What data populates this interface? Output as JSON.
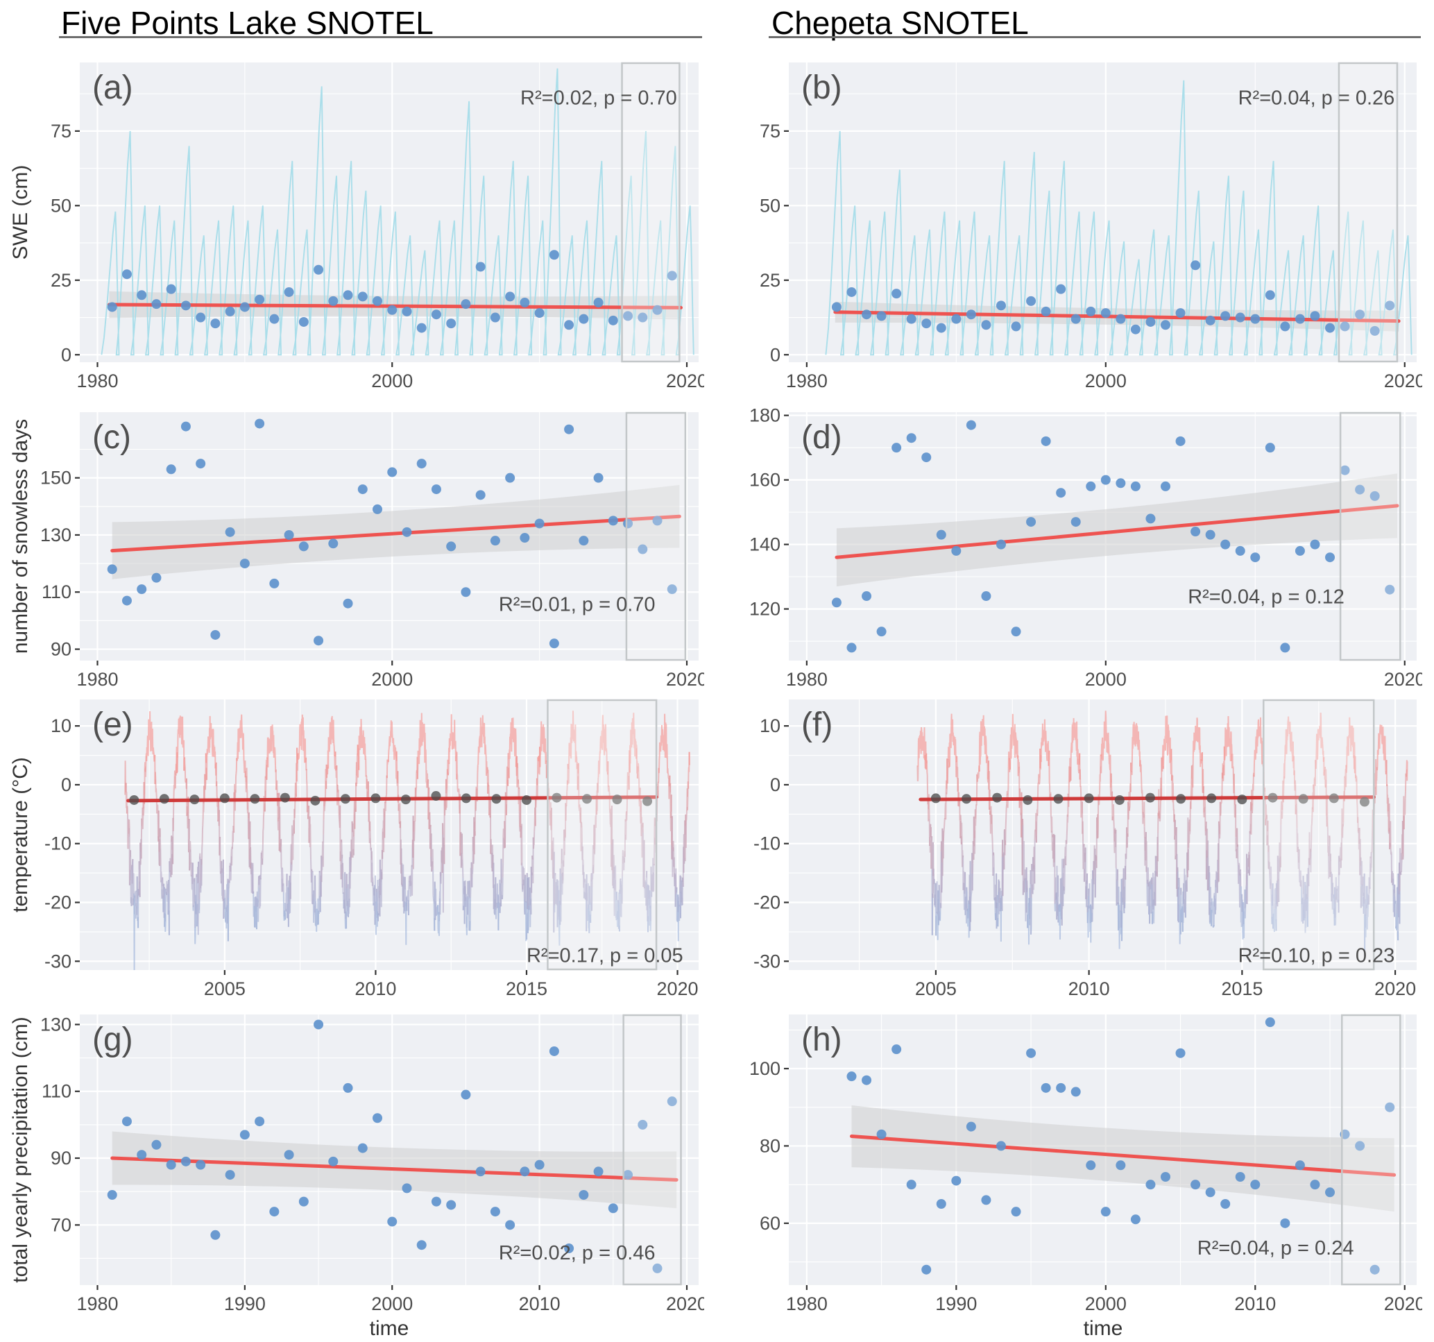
{
  "columns": [
    {
      "title": "Five Points Lake SNOTEL"
    },
    {
      "title": "Chepeta SNOTEL"
    }
  ],
  "axis_titles": {
    "row1": "SWE (cm)",
    "row2": "number of snowless days",
    "row3": "temperature (°C)",
    "row4": "total yearly precipitation (cm)",
    "xlabel_left": "time",
    "xlabel_right": "time"
  },
  "colors": {
    "panel_bg": "#eef0f4",
    "grid": "#ffffff",
    "swe_line": "#a5dce9",
    "dot_blue": "#5e92cc",
    "trend_red": "#ee5350",
    "trend_dark_red": "#cf3a3a",
    "band_gray": "#cfcfcf",
    "temp_warm": "#f5938e",
    "temp_cold": "#9db3da",
    "temp_dot": "#4d4d4d",
    "highlight_border": "#c3c7c9",
    "tick_text": "#4d4d4d",
    "letter": "#4f4f4f",
    "annotation": "#4d4d4d"
  },
  "chart_data": [
    {
      "id": "a",
      "letter": "(a)",
      "type": "line+scatter",
      "station": "Five Points Lake SNOTEL",
      "ylabel": "SWE (cm)",
      "xlabel": "time",
      "annotation": "R²=0.02, p = 0.70",
      "annotation_pos": {
        "x_frac": 0.965,
        "y_frac": 0.14,
        "anchor": "end"
      },
      "xlim": [
        1978.8,
        2020.8
      ],
      "ylim": [
        -2.5,
        98
      ],
      "xticks": [
        1980,
        2000,
        2020
      ],
      "xticks_minor": [
        1990,
        2010
      ],
      "yticks": [
        0,
        25,
        50,
        75
      ],
      "yticks_minor": [
        12.5,
        37.5,
        62.5,
        87.5
      ],
      "highlight_years": [
        2015.6,
        2019.5
      ],
      "seasonal_peaks": {
        "start_year": 1981,
        "values": [
          48,
          75,
          50,
          50,
          45,
          70,
          40,
          45,
          50,
          45,
          50,
          42,
          65,
          42,
          90,
          60,
          65,
          55,
          50,
          48,
          40,
          35,
          45,
          45,
          85,
          60,
          40,
          65,
          60,
          45,
          96,
          40,
          45,
          65,
          40,
          60,
          75,
          45,
          70,
          50
        ]
      },
      "dots": {
        "start_year": 1981,
        "values": [
          16,
          27,
          20,
          17,
          22,
          16.5,
          12.5,
          10.5,
          14.5,
          16,
          18.5,
          12,
          21,
          11,
          28.5,
          18,
          20,
          19.5,
          18,
          15,
          14.5,
          9,
          13.5,
          10.5,
          17,
          29.5,
          12.5,
          19.5,
          17.5,
          14,
          33.5,
          10,
          12,
          17.5,
          11.5,
          13,
          12.5,
          15,
          26.5
        ]
      },
      "trend": {
        "x": [
          1980.8,
          2019.6
        ],
        "y": [
          16.8,
          15.8
        ]
      },
      "band": {
        "half_widths": [
          4.5,
          2.5,
          4
        ]
      }
    },
    {
      "id": "b",
      "letter": "(b)",
      "type": "line+scatter",
      "station": "Chepeta SNOTEL",
      "ylabel": "SWE (cm)",
      "xlabel": "time",
      "annotation": "R²=0.04, p = 0.26",
      "annotation_pos": {
        "x_frac": 0.965,
        "y_frac": 0.14,
        "anchor": "end"
      },
      "xlim": [
        1978.8,
        2020.8
      ],
      "ylim": [
        -2.5,
        98
      ],
      "xticks": [
        1980,
        2000,
        2020
      ],
      "xticks_minor": [
        1990,
        2010
      ],
      "yticks": [
        0,
        25,
        50,
        75
      ],
      "yticks_minor": [
        12.5,
        37.5,
        62.5,
        87.5
      ],
      "highlight_years": [
        2015.6,
        2019.5
      ],
      "seasonal_peaks": {
        "start_year": 1982,
        "values": [
          75,
          50,
          45,
          48,
          62,
          40,
          42,
          48,
          45,
          48,
          40,
          65,
          40,
          68,
          55,
          65,
          48,
          48,
          45,
          38,
          32,
          42,
          40,
          92,
          55,
          38,
          60,
          55,
          42,
          65,
          35,
          40,
          50,
          35,
          48,
          45,
          35,
          42,
          40
        ]
      },
      "dots": {
        "start_year": 1982,
        "values": [
          16,
          21,
          13.5,
          13,
          20.5,
          12,
          10.5,
          9,
          12,
          13.5,
          10,
          16.5,
          9.5,
          18,
          14.5,
          22,
          12,
          14.5,
          14,
          12,
          8.5,
          11,
          10,
          14,
          30,
          11.5,
          13,
          12.5,
          12,
          20,
          9.5,
          12,
          13,
          9,
          9.5,
          13.5,
          8,
          16.5
        ]
      },
      "trend": {
        "x": [
          1981.9,
          2019.6
        ],
        "y": [
          14.3,
          11.3
        ]
      },
      "band": {
        "half_widths": [
          3.5,
          2,
          3.5
        ]
      }
    },
    {
      "id": "c",
      "letter": "(c)",
      "type": "scatter",
      "station": "Five Points Lake SNOTEL",
      "ylabel": "number of snowless days",
      "xlabel": "time",
      "annotation": "R²=0.01, p = 0.70",
      "annotation_pos": {
        "x_frac": 0.93,
        "y_frac": 0.8,
        "anchor": "end"
      },
      "xlim": [
        1978.8,
        2020.8
      ],
      "ylim": [
        86,
        173
      ],
      "xticks": [
        1980,
        2000,
        2020
      ],
      "xticks_minor": [
        1990,
        2010
      ],
      "yticks": [
        90,
        110,
        130,
        150
      ],
      "yticks_minor": [
        100,
        120,
        140,
        160
      ],
      "highlight_years": [
        2015.9,
        2019.9
      ],
      "dots": {
        "start_year": 1981,
        "values": [
          118,
          107,
          111,
          115,
          153,
          168,
          155,
          95,
          131,
          120,
          169,
          113,
          130,
          126,
          93,
          127,
          106,
          146,
          139,
          152,
          131,
          155,
          146,
          126,
          110,
          144,
          128,
          150,
          129,
          134,
          92,
          167,
          128,
          150,
          135,
          134,
          125,
          135,
          111
        ]
      },
      "trend": {
        "x": [
          1981,
          2019.5
        ],
        "y": [
          124.5,
          136.5
        ]
      },
      "band": {
        "half_widths": [
          10,
          5.5,
          11
        ]
      }
    },
    {
      "id": "d",
      "letter": "(d)",
      "type": "scatter",
      "station": "Chepeta SNOTEL",
      "ylabel": "number of snowless days",
      "xlabel": "time",
      "annotation": "R²=0.04, p = 0.12",
      "annotation_pos": {
        "x_frac": 0.885,
        "y_frac": 0.77,
        "anchor": "end"
      },
      "xlim": [
        1978.8,
        2020.8
      ],
      "ylim": [
        104,
        181
      ],
      "xticks": [
        1980,
        2000,
        2020
      ],
      "xticks_minor": [
        1990,
        2010
      ],
      "yticks": [
        120,
        140,
        160,
        180
      ],
      "yticks_minor": [
        110,
        130,
        150,
        170
      ],
      "highlight_years": [
        2015.7,
        2019.7
      ],
      "dots": {
        "start_year": 1982,
        "values": [
          122,
          108,
          124,
          113,
          170,
          173,
          167,
          143,
          138,
          177,
          124,
          140,
          113,
          147,
          172,
          156,
          147,
          158,
          160,
          159,
          158,
          148,
          158,
          172,
          144,
          143,
          140,
          138,
          136,
          170,
          108,
          138,
          140,
          136,
          163,
          157,
          155,
          126
        ]
      },
      "trend": {
        "x": [
          1982,
          2019.5
        ],
        "y": [
          136,
          152
        ]
      },
      "band": {
        "half_widths": [
          9,
          5,
          10
        ]
      }
    },
    {
      "id": "e",
      "letter": "(e)",
      "type": "line+scatter",
      "station": "Five Points Lake SNOTEL",
      "ylabel": "temperature (°C)",
      "xlabel": "time",
      "annotation": "R²=0.17, p = 0.05",
      "annotation_pos": {
        "x_frac": 0.975,
        "y_frac": 0.97,
        "anchor": "end"
      },
      "xlim": [
        2000.2,
        2020.7
      ],
      "ylim": [
        -31.5,
        14.5
      ],
      "xticks": [
        2005,
        2010,
        2015,
        2020
      ],
      "xticks_minor": [
        2002.5,
        2007.5,
        2012.5,
        2017.5
      ],
      "yticks": [
        10,
        0,
        -10,
        -20,
        -30
      ],
      "yticks_minor": [
        5,
        -5,
        -15,
        -25
      ],
      "highlight_years": [
        2015.7,
        2019.3
      ],
      "daily_temp": {
        "start": 2001.7,
        "end": 2020.4,
        "mean": -6,
        "amplitude": 15,
        "noise": 4.5,
        "seed": 7
      },
      "dots": {
        "start_year": 2002,
        "values": [
          -2.6,
          -2.4,
          -2.5,
          -2.3,
          -2.4,
          -2.2,
          -2.7,
          -2.4,
          -2.3,
          -2.5,
          -1.9,
          -2.3,
          -2.4,
          -2.6,
          -2.2,
          -2.4,
          -2.5,
          -2.8
        ]
      },
      "trend": {
        "x": [
          2001.8,
          2019.3
        ],
        "y": [
          -2.7,
          -2.1
        ]
      }
    },
    {
      "id": "f",
      "letter": "(f)",
      "type": "line+scatter",
      "station": "Chepeta SNOTEL",
      "ylabel": "temperature (°C)",
      "xlabel": "time",
      "annotation": "R²=0.10, p = 0.23",
      "annotation_pos": {
        "x_frac": 0.965,
        "y_frac": 0.97,
        "anchor": "end"
      },
      "xlim": [
        2000.2,
        2020.7
      ],
      "ylim": [
        -31.5,
        14.5
      ],
      "xticks": [
        2005,
        2010,
        2015,
        2020
      ],
      "xticks_minor": [
        2002.5,
        2007.5,
        2012.5,
        2017.5
      ],
      "yticks": [
        10,
        0,
        -10,
        -20,
        -30
      ],
      "yticks_minor": [
        5,
        -5,
        -15,
        -25
      ],
      "highlight_years": [
        2015.7,
        2019.3
      ],
      "daily_temp": {
        "start": 2004.4,
        "end": 2020.4,
        "mean": -6,
        "amplitude": 15,
        "noise": 4.5,
        "seed": 13
      },
      "dots": {
        "start_year": 2005,
        "values": [
          -2.3,
          -2.4,
          -2.2,
          -2.6,
          -2.4,
          -2.3,
          -2.6,
          -2.2,
          -2.4,
          -2.3,
          -2.5,
          -2.2,
          -2.4,
          -2.3,
          -2.9
        ]
      },
      "trend": {
        "x": [
          2004.5,
          2019.3
        ],
        "y": [
          -2.5,
          -2.1
        ]
      }
    },
    {
      "id": "g",
      "letter": "(g)",
      "type": "scatter",
      "station": "Five Points Lake SNOTEL",
      "ylabel": "total yearly precipitation (cm)",
      "xlabel": "time",
      "annotation": "R²=0.02, p = 0.46",
      "annotation_pos": {
        "x_frac": 0.93,
        "y_frac": 0.905,
        "anchor": "end"
      },
      "xlim": [
        1978.8,
        2020.8
      ],
      "ylim": [
        52,
        133
      ],
      "xticks": [
        1980,
        1990,
        2000,
        2010,
        2020
      ],
      "xticks_minor": [
        1985,
        1995,
        2005,
        2015
      ],
      "yticks": [
        70,
        90,
        110,
        130
      ],
      "yticks_minor": [
        60,
        80,
        100,
        120
      ],
      "highlight_years": [
        2015.7,
        2019.6
      ],
      "dots": {
        "start_year": 1981,
        "values": [
          79,
          101,
          91,
          94,
          88,
          89,
          88,
          67,
          85,
          97,
          101,
          74,
          91,
          77,
          130,
          89,
          111,
          93,
          102,
          71,
          81,
          64,
          77,
          76,
          109,
          86,
          74,
          70,
          86,
          88,
          122,
          63,
          79,
          86,
          75,
          85,
          100,
          57,
          107
        ]
      },
      "trend": {
        "x": [
          1981,
          2019.3
        ],
        "y": [
          90,
          83.5
        ]
      },
      "band": {
        "half_widths": [
          8,
          4.5,
          8.5
        ]
      }
    },
    {
      "id": "h",
      "letter": "(h)",
      "type": "scatter",
      "station": "Chepeta SNOTEL",
      "ylabel": "total yearly precipitation (cm)",
      "xlabel": "time",
      "annotation": "R²=0.04, p = 0.24",
      "annotation_pos": {
        "x_frac": 0.9,
        "y_frac": 0.887,
        "anchor": "end"
      },
      "xlim": [
        1978.8,
        2020.8
      ],
      "ylim": [
        44,
        114
      ],
      "xticks": [
        1980,
        1990,
        2000,
        2010,
        2020
      ],
      "xticks_minor": [
        1985,
        1995,
        2005,
        2015
      ],
      "yticks": [
        60,
        80,
        100
      ],
      "yticks_minor": [
        50,
        70,
        90,
        110
      ],
      "highlight_years": [
        2015.8,
        2019.7
      ],
      "dots": {
        "start_year": 1983,
        "values": [
          98,
          97,
          83,
          105,
          70,
          48,
          65,
          71,
          85,
          66,
          80,
          63,
          104,
          95,
          95,
          94,
          75,
          63,
          75,
          61,
          70,
          72,
          104,
          70,
          68,
          65,
          72,
          70,
          112,
          60,
          75,
          70,
          68,
          83,
          80,
          48,
          90
        ]
      },
      "trend": {
        "x": [
          1983,
          2019.3
        ],
        "y": [
          82.5,
          72.5
        ]
      },
      "band": {
        "half_widths": [
          8,
          5,
          9.5
        ]
      }
    }
  ]
}
